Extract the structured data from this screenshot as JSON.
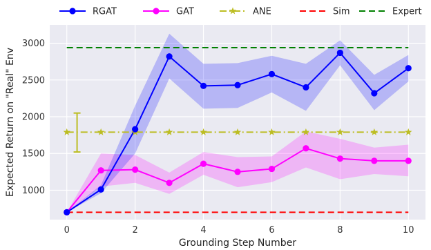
{
  "chart_data": {
    "type": "line",
    "xlabel": "Grounding Step Number",
    "ylabel": "Expected Return on \"Real\" Env",
    "xlim": [
      -0.5,
      10.5
    ],
    "ylim": [
      600,
      3250
    ],
    "x_ticks": [
      0,
      2,
      4,
      6,
      8,
      10
    ],
    "y_ticks": [
      1000,
      1500,
      2000,
      2500,
      3000
    ],
    "grid": true,
    "legend_position": "top",
    "background": "#eaeaf2",
    "series": [
      {
        "name": "RGAT",
        "color": "#0000ff",
        "style": "solid",
        "marker": "circle",
        "x": [
          0,
          1,
          2,
          3,
          4,
          5,
          6,
          7,
          8,
          9,
          10
        ],
        "y": [
          700,
          1010,
          1830,
          2820,
          2420,
          2430,
          2580,
          2400,
          2870,
          2320,
          2660
        ],
        "band_low": [
          700,
          960,
          1500,
          2520,
          2110,
          2120,
          2330,
          2080,
          2700,
          2090,
          2480
        ],
        "band_high": [
          700,
          1070,
          2150,
          3130,
          2720,
          2730,
          2830,
          2720,
          3040,
          2570,
          2840
        ]
      },
      {
        "name": "GAT",
        "color": "#ff00ff",
        "style": "solid",
        "marker": "circle",
        "x": [
          0,
          1,
          2,
          3,
          4,
          5,
          6,
          7,
          8,
          9,
          10
        ],
        "y": [
          700,
          1270,
          1280,
          1100,
          1360,
          1250,
          1290,
          1570,
          1430,
          1400,
          1400
        ],
        "band_low": [
          700,
          1050,
          1100,
          950,
          1210,
          1040,
          1110,
          1310,
          1150,
          1220,
          1190
        ],
        "band_high": [
          700,
          1500,
          1480,
          1240,
          1520,
          1450,
          1460,
          1800,
          1700,
          1580,
          1620
        ]
      },
      {
        "name": "ANE",
        "color": "#bcbd22",
        "style": "dashdot",
        "marker": "star",
        "x": [
          0,
          1,
          2,
          3,
          4,
          5,
          6,
          7,
          8,
          9,
          10
        ],
        "y": [
          1790,
          1790,
          1790,
          1790,
          1790,
          1790,
          1790,
          1790,
          1790,
          1790,
          1790
        ],
        "errorbar": {
          "x": 0.3,
          "low": 1520,
          "high": 2050
        }
      },
      {
        "name": "Sim",
        "color": "#ff0000",
        "style": "dashed",
        "marker": "none",
        "x": [
          0,
          10
        ],
        "y": [
          700,
          700
        ]
      },
      {
        "name": "Expert",
        "color": "#008000",
        "style": "dashed",
        "marker": "none",
        "x": [
          0,
          10
        ],
        "y": [
          2940,
          2940
        ]
      }
    ]
  }
}
